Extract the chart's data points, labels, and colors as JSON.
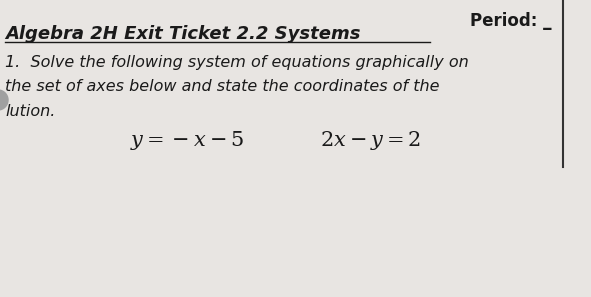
{
  "background_color": "#e8e5e2",
  "title": "Algebra 2H Exit Ticket 2.2 Systems",
  "period_label": "Period: _",
  "line1": "1.  Solve the following system of equations graphically on",
  "line2": "the set of axes below and state the coordinates of the",
  "line3_partial": "●lution.",
  "eq1": "$y = -x - 5$",
  "eq2": "$2x - y = 2$",
  "title_fontsize": 13,
  "body_fontsize": 11.5,
  "eq_fontsize": 15,
  "period_fontsize": 12,
  "text_color": "#1a1a1a",
  "title_color": "#1a1a1a",
  "border_color": "#333333"
}
